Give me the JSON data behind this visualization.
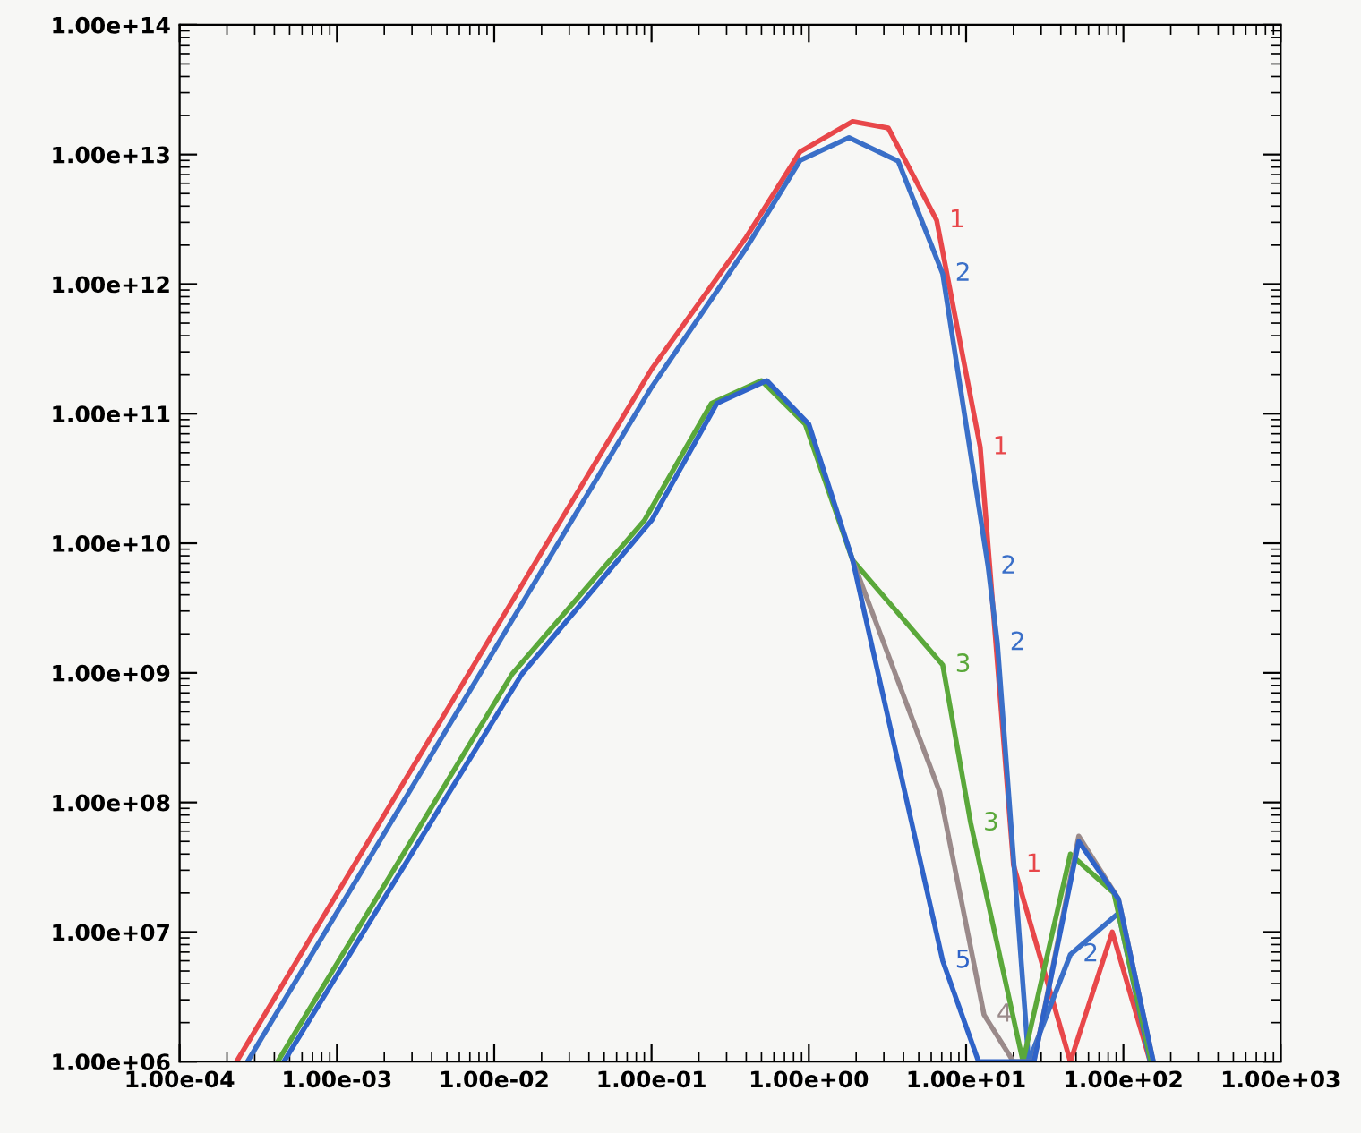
{
  "chart_data": {
    "type": "line",
    "log": "xy",
    "grid": false,
    "legend": false,
    "marker": "none",
    "line_style": "solid",
    "xlim": [
      0.0001,
      1000
    ],
    "ylim": [
      1000000,
      100000000000000
    ],
    "xticks": [
      {
        "value": 0.0001,
        "label": "1.00e-04"
      },
      {
        "value": 0.001,
        "label": "1.00e-03"
      },
      {
        "value": 0.01,
        "label": "1.00e-02"
      },
      {
        "value": 0.1,
        "label": "1.00e-01"
      },
      {
        "value": 1,
        "label": "1.00e+00"
      },
      {
        "value": 10,
        "label": "1.00e+01"
      },
      {
        "value": 100,
        "label": "1.00e+02"
      },
      {
        "value": 1000,
        "label": "1.00e+03"
      }
    ],
    "yticks": [
      {
        "value": 1000000,
        "label": "1.00e+06"
      },
      {
        "value": 10000000,
        "label": "1.00e+07"
      },
      {
        "value": 100000000,
        "label": "1.00e+08"
      },
      {
        "value": 1000000000,
        "label": "1.00e+09"
      },
      {
        "value": 10000000000,
        "label": "1.00e+10"
      },
      {
        "value": 100000000000,
        "label": "1.00e+11"
      },
      {
        "value": 1000000000000,
        "label": "1.00e+12"
      },
      {
        "value": 10000000000000,
        "label": "1.00e+13"
      },
      {
        "value": 100000000000000,
        "label": "1.00e+14"
      }
    ],
    "series": [
      {
        "name": "1",
        "color": "#e8474a",
        "x": [
          0.00023,
          0.01,
          0.1,
          0.4,
          0.88,
          1.9,
          3.2,
          6.5,
          12.3,
          20,
          46,
          85,
          148
        ],
        "values": [
          1000000,
          2100000000,
          220000000000,
          2300000000000,
          10500000000000,
          18000000000000,
          16000000000000,
          3100000000000,
          55000000000,
          33000000,
          1000000,
          10000000,
          1000000
        ]
      },
      {
        "name": "2",
        "color": "#3a6fc8",
        "x": [
          0.00027,
          0.01,
          0.1,
          0.4,
          0.88,
          1.8,
          3.7,
          7.1,
          13.8,
          15.8,
          25,
          46,
          93,
          148
        ],
        "values": [
          1000000,
          1500000000,
          160000000000,
          1900000000000,
          9000000000000,
          13500000000000,
          8900000000000,
          1200000000000,
          6600000000,
          1700000000,
          1000000,
          6700000,
          14000000,
          1000000
        ]
      },
      {
        "name": "3",
        "color": "#5aa83a",
        "x": [
          0.00042,
          0.013,
          0.09,
          0.24,
          0.5,
          0.95,
          1.9,
          7.1,
          10.7,
          23,
          46,
          87,
          150
        ],
        "values": [
          1000000,
          980000000,
          15000000000,
          120000000000,
          180000000000,
          83000000000,
          7400000000,
          1150000000,
          69000000,
          1000000,
          40000000,
          20000000,
          1000000
        ]
      },
      {
        "name": "4",
        "color": "#9a8a8a",
        "x": [
          1.9,
          6.8,
          13,
          20,
          27,
          52,
          93,
          155
        ],
        "values": [
          7400000000,
          120000000,
          2300000,
          1000000,
          1000000,
          55000000,
          18000000,
          1000000
        ]
      },
      {
        "name": "5",
        "color": "#2f63c8",
        "x": [
          0.00046,
          0.015,
          0.1,
          0.26,
          0.54,
          1.0,
          1.9,
          7.1,
          12,
          27,
          52,
          93,
          155
        ],
        "values": [
          1000000,
          980000000,
          15000000000,
          120000000000,
          180000000000,
          83000000000,
          7400000000,
          6000000,
          1000000,
          1000000,
          50000000,
          18000000,
          1000000
        ]
      }
    ]
  }
}
